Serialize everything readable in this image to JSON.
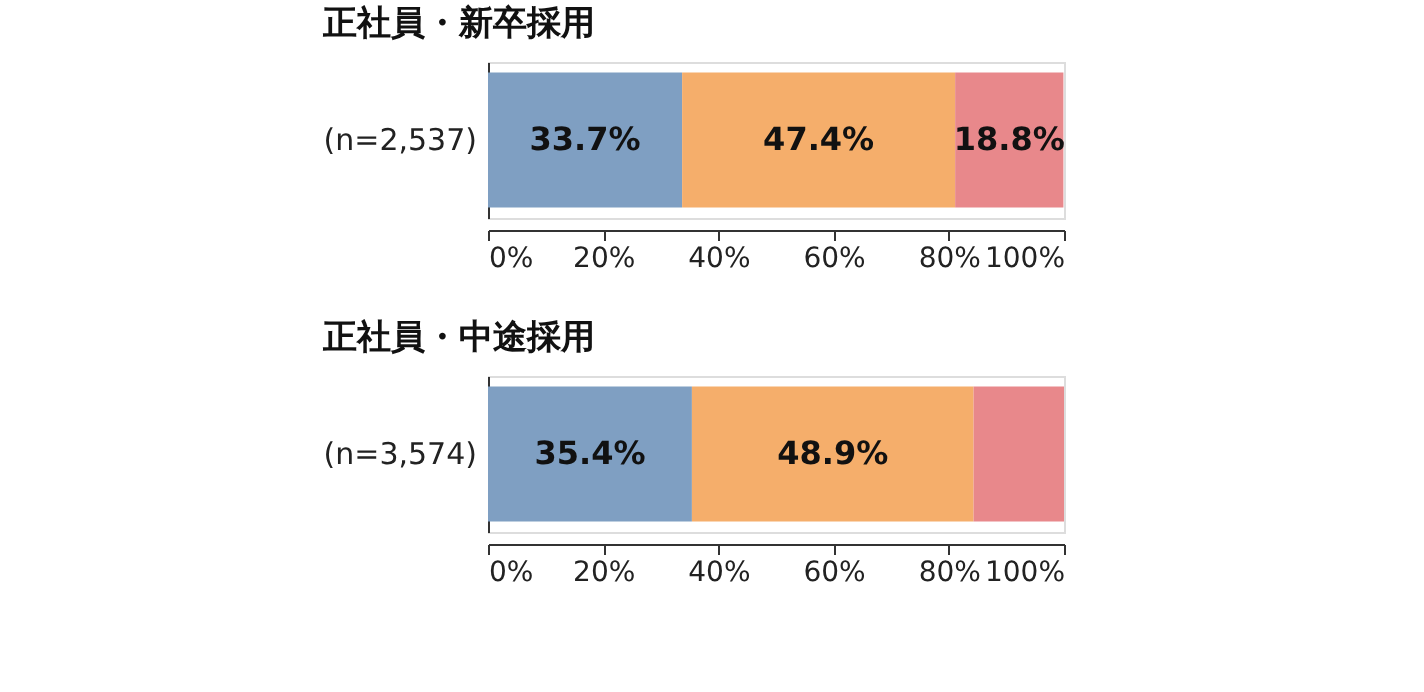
{
  "chart_data": [
    {
      "type": "bar",
      "orientation": "horizontal",
      "stacked": true,
      "title": "正社員・新卒採用",
      "categories": [
        "(n=2,537)"
      ],
      "series": [
        {
          "color": "#7f9fc2",
          "values": [
            33.7
          ],
          "value_labels": [
            "33.7%"
          ]
        },
        {
          "color": "#f5ae6b",
          "values": [
            47.4
          ],
          "value_labels": [
            "47.4%"
          ]
        },
        {
          "color": "#e8888b",
          "values": [
            18.8
          ],
          "value_labels": [
            "18.8%"
          ]
        }
      ],
      "xlim": [
        0,
        100
      ],
      "xticks": [
        {
          "value": 0,
          "label": "0%"
        },
        {
          "value": 20,
          "label": "20%"
        },
        {
          "value": 40,
          "label": "40%"
        },
        {
          "value": 60,
          "label": "60%"
        },
        {
          "value": 80,
          "label": "80%"
        },
        {
          "value": 100,
          "label": "100%"
        }
      ],
      "grid": false
    },
    {
      "type": "bar",
      "orientation": "horizontal",
      "stacked": true,
      "title": "正社員・中途採用",
      "categories": [
        "(n=3,574)"
      ],
      "series": [
        {
          "color": "#7f9fc2",
          "values": [
            35.4
          ],
          "value_labels": [
            "35.4%"
          ]
        },
        {
          "color": "#f5ae6b",
          "values": [
            48.9
          ],
          "value_labels": [
            "48.9%"
          ]
        },
        {
          "color": "#e8888b",
          "values": [
            15.7
          ],
          "value_labels": [
            null
          ]
        }
      ],
      "xlim": [
        0,
        100
      ],
      "xticks": [
        {
          "value": 0,
          "label": "0%"
        },
        {
          "value": 20,
          "label": "20%"
        },
        {
          "value": 40,
          "label": "40%"
        },
        {
          "value": 60,
          "label": "60%"
        },
        {
          "value": 80,
          "label": "80%"
        },
        {
          "value": 100,
          "label": "100%"
        }
      ],
      "grid": false
    }
  ]
}
